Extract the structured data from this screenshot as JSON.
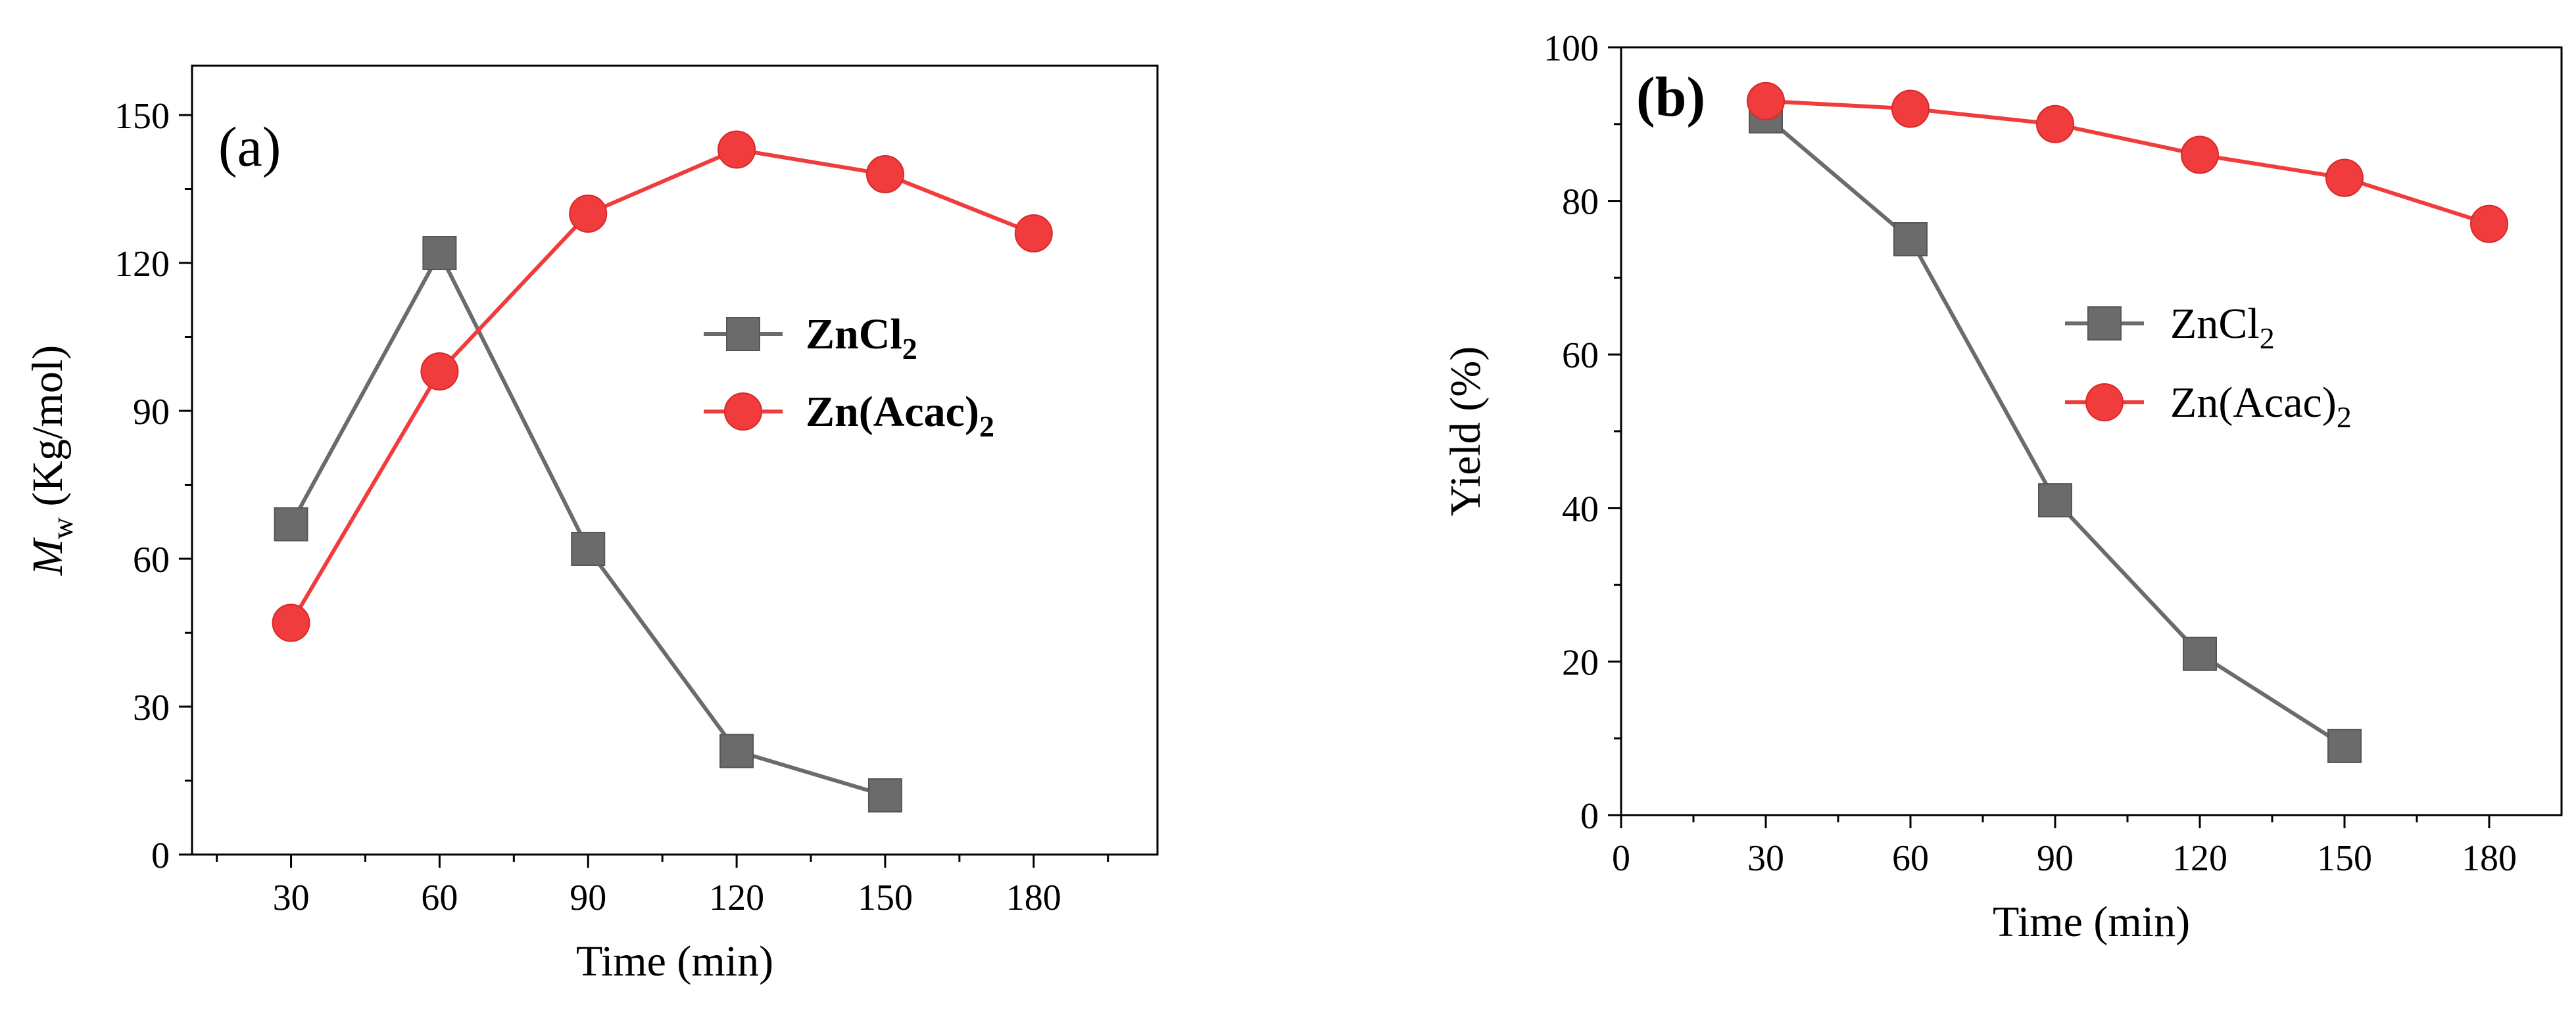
{
  "chart_data": [
    {
      "type": "line",
      "panel_label": "(a)",
      "panel_label_bold": false,
      "title": "",
      "xlabel": "Time (min)",
      "ylabel_main": "M",
      "ylabel_sub": "w",
      "ylabel_rest": " (Kg/mol)",
      "xlim": [
        10,
        205
      ],
      "ylim": [
        0,
        160
      ],
      "xticks": [
        30,
        60,
        90,
        120,
        150,
        180
      ],
      "yticks": [
        0,
        30,
        60,
        90,
        120,
        150
      ],
      "legend_position": "center-right",
      "legend_bold": true,
      "series": [
        {
          "name": "ZnCl2",
          "label_main": "ZnCl",
          "label_sub": "2",
          "label_tail": "",
          "color": "#6b6b6b",
          "marker": "square",
          "x": [
            30,
            60,
            90,
            120,
            150
          ],
          "values": [
            67,
            122,
            62,
            21,
            12
          ]
        },
        {
          "name": "Zn(Acac)2",
          "label_main": "Zn(Acac)",
          "label_sub": "2",
          "label_tail": "",
          "color": "#f03c3c",
          "marker": "circle",
          "x": [
            30,
            60,
            90,
            120,
            150,
            180
          ],
          "values": [
            47,
            98,
            130,
            143,
            138,
            126
          ]
        }
      ]
    },
    {
      "type": "line",
      "panel_label": "(b)",
      "panel_label_bold": true,
      "title": "",
      "xlabel": "Time (min)",
      "ylabel_main": "Yield (%)",
      "ylabel_sub": "",
      "ylabel_rest": "",
      "xlim": [
        0,
        195
      ],
      "ylim": [
        0,
        100
      ],
      "xticks": [
        0,
        30,
        60,
        90,
        120,
        150,
        180
      ],
      "yticks": [
        0,
        20,
        40,
        60,
        80,
        100
      ],
      "legend_position": "center-right",
      "legend_bold": false,
      "series": [
        {
          "name": "ZnCl2",
          "label_main": "ZnCl",
          "label_sub": "2",
          "label_tail": "",
          "color": "#6b6b6b",
          "marker": "square",
          "x": [
            30,
            60,
            90,
            120,
            150
          ],
          "values": [
            91,
            75,
            41,
            21,
            9
          ]
        },
        {
          "name": "Zn(Acac)2",
          "label_main": "Zn(Acac)",
          "label_sub": "2",
          "label_tail": "",
          "color": "#f03c3c",
          "marker": "circle",
          "x": [
            30,
            60,
            90,
            120,
            150,
            180
          ],
          "values": [
            93,
            92,
            90,
            86,
            83,
            77
          ]
        }
      ]
    }
  ]
}
